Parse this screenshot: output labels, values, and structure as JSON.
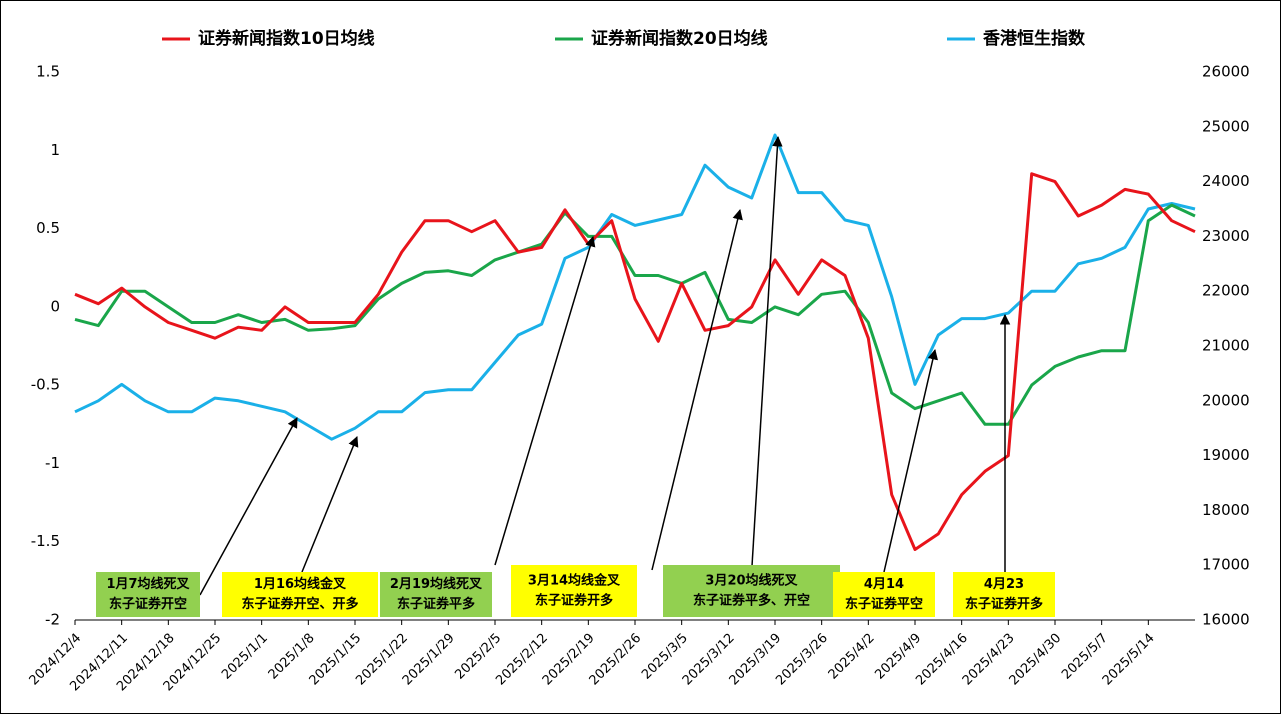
{
  "chart_data": {
    "type": "line",
    "categories": [
      "2024/12/4",
      null,
      "2024/12/11",
      null,
      "2024/12/18",
      null,
      "2024/12/25",
      null,
      "2025/1/1",
      null,
      "2025/1/8",
      null,
      "2025/1/15",
      null,
      "2025/1/22",
      null,
      "2025/1/29",
      null,
      "2025/2/5",
      null,
      "2025/2/12",
      null,
      "2025/2/19",
      null,
      "2025/2/26",
      null,
      "2025/3/5",
      null,
      "2025/3/12",
      null,
      "2025/3/19",
      null,
      "2025/3/26",
      null,
      "2025/4/2",
      null,
      "2025/4/9",
      null,
      "2025/4/16",
      null,
      "2025/4/23",
      null,
      "2025/4/30",
      null,
      "2025/5/7",
      null,
      "2025/5/14",
      null,
      null
    ],
    "series": [
      {
        "name": "证券新闻指数10日均线",
        "color": "#e8141b",
        "values": [
          0.08,
          0.02,
          0.12,
          0.0,
          -0.1,
          -0.15,
          -0.2,
          -0.13,
          -0.15,
          0.0,
          -0.1,
          -0.1,
          -0.1,
          0.08,
          0.35,
          0.55,
          0.55,
          0.48,
          0.55,
          0.35,
          0.38,
          0.62,
          0.4,
          0.55,
          0.05,
          -0.22,
          0.15,
          -0.15,
          -0.12,
          0.0,
          0.3,
          0.08,
          0.3,
          0.2,
          -0.2,
          -1.2,
          -1.55,
          -1.45,
          -1.2,
          -1.05,
          -0.95,
          0.85,
          0.8,
          0.58,
          0.65,
          0.75,
          0.72,
          0.55,
          0.48
        ]
      },
      {
        "name": "证券新闻指数20日均线",
        "color": "#1aa64a",
        "values": [
          -0.08,
          -0.12,
          0.1,
          0.1,
          0.0,
          -0.1,
          -0.1,
          -0.05,
          -0.1,
          -0.08,
          -0.15,
          -0.14,
          -0.12,
          0.05,
          0.15,
          0.22,
          0.23,
          0.2,
          0.3,
          0.35,
          0.4,
          0.6,
          0.45,
          0.45,
          0.2,
          0.2,
          0.15,
          0.22,
          -0.08,
          -0.1,
          0.0,
          -0.05,
          0.08,
          0.1,
          -0.1,
          -0.55,
          -0.65,
          -0.6,
          -0.55,
          -0.75,
          -0.75,
          -0.5,
          -0.38,
          -0.32,
          -0.28,
          -0.28,
          0.55,
          0.65,
          0.58
        ]
      },
      {
        "name": "香港恒生指数",
        "color": "#1ab0e8",
        "axis": "y2",
        "values": [
          19800,
          20000,
          20300,
          20000,
          19800,
          19800,
          20050,
          20000,
          19900,
          19800,
          19550,
          19300,
          19500,
          19800,
          19800,
          20150,
          20200,
          20200,
          20700,
          21200,
          21400,
          22600,
          22800,
          23400,
          23200,
          23300,
          23400,
          24300,
          23900,
          23700,
          24850,
          23800,
          23800,
          23300,
          23200,
          21900,
          20300,
          21200,
          21500,
          21500,
          21600,
          22000,
          22000,
          22500,
          22600,
          22800,
          23500,
          23600,
          23500
        ]
      }
    ],
    "ylim": [
      -2,
      1.5
    ],
    "yticks": [
      1.5,
      1,
      0.5,
      0,
      -0.5,
      -1,
      -1.5,
      -2
    ],
    "y2lim": [
      16000,
      26000
    ],
    "y2ticks": [
      26000,
      25000,
      24000,
      23000,
      22000,
      21000,
      20000,
      19000,
      18000,
      17000,
      16000
    ],
    "grid": false,
    "annotations": [
      {
        "lines": [
          "1月7均线死叉",
          "东子证券开空"
        ],
        "color": "#92d050"
      },
      {
        "lines": [
          "1月16均线金叉",
          "东子证券开空、开多"
        ],
        "color": "#ffff00"
      },
      {
        "lines": [
          "2月19均线死叉",
          "东子证券平多"
        ],
        "color": "#92d050"
      },
      {
        "lines": [
          "3月14均线金叉",
          "东子证券开多"
        ],
        "color": "#ffff00"
      },
      {
        "lines": [
          "3月20均线死叉",
          "东子证券平多、开空"
        ],
        "color": "#92d050"
      },
      {
        "lines": [
          "4月14",
          "东子证券平空"
        ],
        "color": "#ffff00"
      },
      {
        "lines": [
          "4月23",
          "东子证券开多"
        ],
        "color": "#ffff00"
      }
    ]
  }
}
